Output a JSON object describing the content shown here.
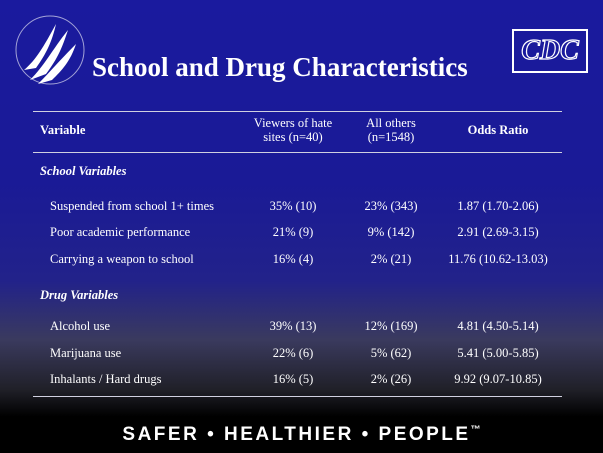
{
  "header": {
    "title": "School and Drug Characteristics",
    "logo": "CDC"
  },
  "table": {
    "columns": [
      [
        "Variable"
      ],
      [
        "Viewers of hate",
        "sites (n=40)"
      ],
      [
        "All others",
        "(n=1548)"
      ],
      [
        "Odds Ratio"
      ]
    ],
    "sections": [
      {
        "title": "School Variables",
        "rows": [
          [
            "Suspended from school 1+ times",
            "35% (10)",
            "23% (343)",
            "1.87 (1.70-2.06)"
          ],
          [
            "Poor academic performance",
            "21% (9)",
            "9% (142)",
            "2.91 (2.69-3.15)"
          ],
          [
            "Carrying a weapon to school",
            "16% (4)",
            "2% (21)",
            "11.76 (10.62-13.03)"
          ]
        ]
      },
      {
        "title": "Drug Variables",
        "rows": [
          [
            "Alcohol use",
            "39% (13)",
            "12% (169)",
            "4.81 (4.50-5.14)"
          ],
          [
            "Marijuana use",
            "22% (6)",
            "5% (62)",
            "5.41 (5.00-5.85)"
          ],
          [
            "Inhalants / Hard drugs",
            "16% (5)",
            "2% (26)",
            "9.92 (9.07-10.85)"
          ]
        ]
      }
    ]
  },
  "footer": {
    "tagline": "SAFER • HEALTHIER • PEOPLE",
    "trademark": "™"
  }
}
